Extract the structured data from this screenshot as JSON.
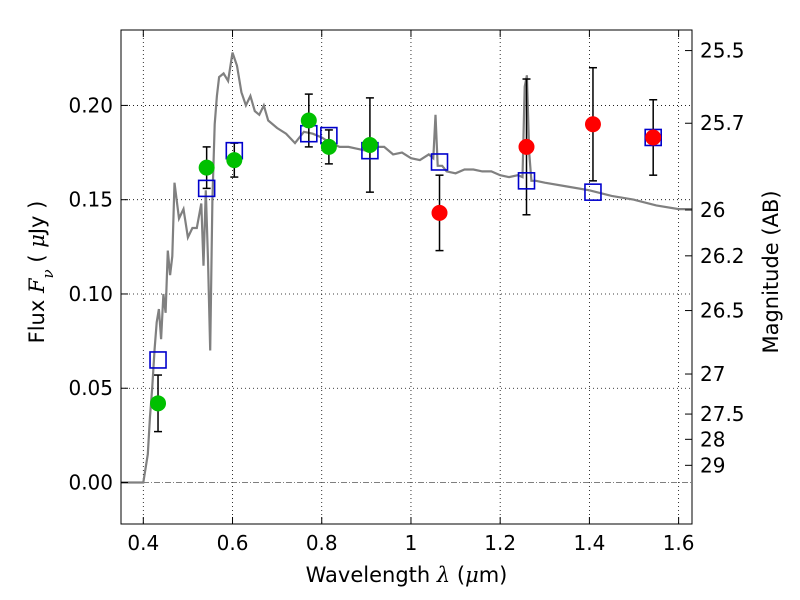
{
  "chart_data": {
    "type": "scatter",
    "xlabel_parts": [
      "Wavelength  ",
      "λ",
      " (",
      "μ",
      "m)"
    ],
    "ylabel_parts": [
      "Flux  ",
      "F",
      "ν",
      "  ( ",
      "μ",
      "Jy )"
    ],
    "y2label": "Magnitude (AB)",
    "xlim": [
      0.35,
      1.63
    ],
    "ylim": [
      -0.022,
      0.24
    ],
    "grid": true,
    "x_ticks": [
      0.4,
      0.6,
      0.8,
      1.0,
      1.2,
      1.4,
      1.6
    ],
    "x_tick_labels": [
      "0.4",
      "0.6",
      "0.8",
      "1",
      "1.2",
      "1.4",
      "1.6"
    ],
    "y_ticks": [
      0.0,
      0.05,
      0.1,
      0.15,
      0.2
    ],
    "y_tick_labels": [
      "0.00",
      "0.05",
      "0.10",
      "0.15",
      "0.20"
    ],
    "mag_ticks": [
      {
        "mag": 25.5,
        "label": "25.5"
      },
      {
        "mag": 25.7,
        "label": "25.7"
      },
      {
        "mag": 26.0,
        "label": "26"
      },
      {
        "mag": 26.2,
        "label": "26.2"
      },
      {
        "mag": 26.5,
        "label": "26.5"
      },
      {
        "mag": 27.0,
        "label": "27"
      },
      {
        "mag": 27.5,
        "label": "27.5"
      },
      {
        "mag": 28.0,
        "label": "28"
      },
      {
        "mag": 29.0,
        "label": "29"
      }
    ],
    "colors": {
      "model": "#808080",
      "green": "#00c000",
      "red": "#ff0000",
      "blue": "#0000cc",
      "errorbar": "#000000",
      "grid": "#000000",
      "zero_line": "#555555"
    },
    "series": [
      {
        "name": "model spectrum",
        "style": "line",
        "x": [
          0.35,
          0.4,
          0.41,
          0.415,
          0.42,
          0.425,
          0.43,
          0.435,
          0.44,
          0.445,
          0.45,
          0.455,
          0.46,
          0.465,
          0.47,
          0.48,
          0.49,
          0.5,
          0.51,
          0.52,
          0.53,
          0.535,
          0.54,
          0.545,
          0.55,
          0.555,
          0.56,
          0.565,
          0.57,
          0.58,
          0.59,
          0.6,
          0.61,
          0.62,
          0.63,
          0.64,
          0.65,
          0.66,
          0.67,
          0.68,
          0.7,
          0.72,
          0.74,
          0.76,
          0.78,
          0.8,
          0.82,
          0.84,
          0.86,
          0.88,
          0.9,
          0.92,
          0.94,
          0.96,
          0.98,
          1.0,
          1.02,
          1.04,
          1.05,
          1.055,
          1.06,
          1.07,
          1.08,
          1.1,
          1.12,
          1.14,
          1.16,
          1.18,
          1.2,
          1.22,
          1.24,
          1.25,
          1.255,
          1.26,
          1.265,
          1.27,
          1.28,
          1.3,
          1.35,
          1.4,
          1.45,
          1.5,
          1.55,
          1.6,
          1.63
        ],
        "y": [
          0.0,
          0.0,
          0.015,
          0.035,
          0.05,
          0.07,
          0.085,
          0.092,
          0.076,
          0.1,
          0.09,
          0.123,
          0.11,
          0.12,
          0.159,
          0.14,
          0.145,
          0.13,
          0.135,
          0.135,
          0.148,
          0.115,
          0.155,
          0.118,
          0.07,
          0.15,
          0.19,
          0.205,
          0.215,
          0.217,
          0.213,
          0.228,
          0.221,
          0.207,
          0.2,
          0.205,
          0.197,
          0.195,
          0.2,
          0.192,
          0.188,
          0.185,
          0.18,
          0.186,
          0.185,
          0.183,
          0.18,
          0.178,
          0.178,
          0.177,
          0.176,
          0.178,
          0.178,
          0.174,
          0.175,
          0.172,
          0.171,
          0.174,
          0.172,
          0.195,
          0.168,
          0.168,
          0.165,
          0.164,
          0.166,
          0.166,
          0.165,
          0.165,
          0.163,
          0.162,
          0.163,
          0.162,
          0.21,
          0.216,
          0.175,
          0.16,
          0.16,
          0.159,
          0.157,
          0.155,
          0.152,
          0.15,
          0.147,
          0.145,
          0.145
        ]
      },
      {
        "name": "green detections",
        "style": "circle",
        "x": [
          0.433,
          0.542,
          0.604,
          0.771,
          0.816,
          0.908
        ],
        "y": [
          0.042,
          0.167,
          0.171,
          0.192,
          0.178,
          0.179
        ],
        "err": [
          0.015,
          0.011,
          0.009,
          0.014,
          0.009,
          0.025
        ]
      },
      {
        "name": "red detections",
        "style": "circle",
        "x": [
          1.064,
          1.259,
          1.408,
          1.543
        ],
        "y": [
          0.143,
          0.178,
          0.19,
          0.183
        ],
        "err": [
          0.02,
          0.036,
          0.03,
          0.02
        ]
      },
      {
        "name": "model photometry",
        "style": "square",
        "x": [
          0.433,
          0.542,
          0.604,
          0.771,
          0.816,
          0.908,
          1.064,
          1.259,
          1.408,
          1.543
        ],
        "y": [
          0.065,
          0.156,
          0.176,
          0.185,
          0.184,
          0.176,
          0.17,
          0.16,
          0.154,
          0.183
        ]
      }
    ]
  }
}
